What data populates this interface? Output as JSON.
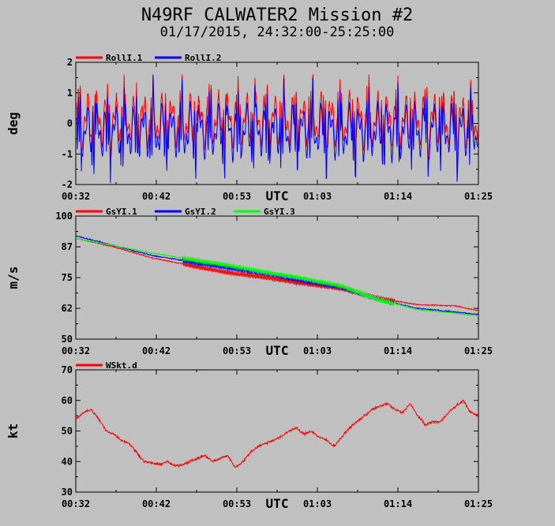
{
  "title": "N49RF CALWATER2 Mission #2",
  "subtitle": "01/17/2015, 24:32:00-25:25:00",
  "chart_data": [
    {
      "type": "line",
      "ylabel": "deg",
      "xlabel": "UTC",
      "ylim": [
        -2,
        2
      ],
      "yticks": [
        "2",
        "1",
        "0",
        "-1",
        "-2"
      ],
      "xticks": [
        "00:32",
        "00:42",
        "00:53",
        "01:03",
        "01:14",
        "01:25"
      ],
      "series": [
        {
          "name": "RollI.1",
          "color": "#ff0000"
        },
        {
          "name": "RollI.2",
          "color": "#0000ff"
        }
      ]
    },
    {
      "type": "line",
      "ylabel": "m/s",
      "xlabel": "UTC",
      "ylim": [
        50,
        100
      ],
      "yticks": [
        "100",
        "87",
        "75",
        "62",
        "50"
      ],
      "xticks": [
        "00:32",
        "00:42",
        "00:53",
        "01:03",
        "01:14",
        "01:25"
      ],
      "series": [
        {
          "name": "GsYI.1",
          "color": "#ff0000",
          "x": [
            0,
            5,
            10,
            15,
            20,
            25,
            30,
            35,
            40,
            45,
            50,
            53
          ],
          "y": [
            91,
            87.5,
            83,
            80,
            77,
            75,
            72.5,
            70.5,
            66.5,
            64,
            63.5,
            61.5
          ]
        },
        {
          "name": "GsYI.2",
          "color": "#0000ff",
          "x": [
            0,
            5,
            10,
            15,
            20,
            25,
            30,
            35,
            40,
            45,
            50,
            53
          ],
          "y": [
            92,
            88,
            84,
            81.5,
            79,
            76.5,
            73.5,
            71,
            66,
            62.5,
            61,
            60
          ]
        },
        {
          "name": "GsYI.3",
          "color": "#00ff00",
          "x": [
            0,
            5,
            10,
            15,
            20,
            25,
            30,
            35,
            40,
            45,
            50,
            53
          ],
          "y": [
            91,
            88,
            85,
            82.5,
            80,
            77,
            74.5,
            71.5,
            66,
            62,
            60.5,
            59.5
          ]
        }
      ]
    },
    {
      "type": "line",
      "ylabel": "kt",
      "xlabel": "UTC",
      "ylim": [
        30,
        70
      ],
      "yticks": [
        "70",
        "60",
        "50",
        "40",
        "30"
      ],
      "xticks": [
        "00:32",
        "00:42",
        "00:53",
        "01:03",
        "01:14",
        "01:25"
      ],
      "series": [
        {
          "name": "WSkt.d",
          "color": "#ff0000",
          "x": [
            0,
            1,
            2,
            3,
            4,
            5,
            6,
            7,
            8,
            9,
            10,
            11,
            12,
            13,
            14,
            15,
            16,
            17,
            18,
            19,
            20,
            21,
            22,
            23,
            24,
            25,
            26,
            27,
            28,
            29,
            30,
            31,
            32,
            33,
            34,
            35,
            36,
            37,
            38,
            39,
            40,
            41,
            42,
            43,
            44,
            45,
            46,
            47,
            48,
            49,
            50,
            51,
            52,
            53
          ],
          "y": [
            54,
            56,
            57,
            54,
            50,
            49,
            47,
            46,
            43,
            40,
            39.5,
            39,
            40,
            38.5,
            39,
            40,
            41,
            42,
            40,
            41,
            42,
            38,
            40,
            43,
            45,
            46,
            47,
            48,
            50,
            51,
            49,
            50,
            48,
            47,
            45,
            48,
            51,
            53,
            55,
            57,
            58,
            59,
            57,
            56,
            59,
            55,
            52,
            53,
            53,
            56,
            58,
            60,
            56,
            55
          ]
        }
      ]
    }
  ]
}
